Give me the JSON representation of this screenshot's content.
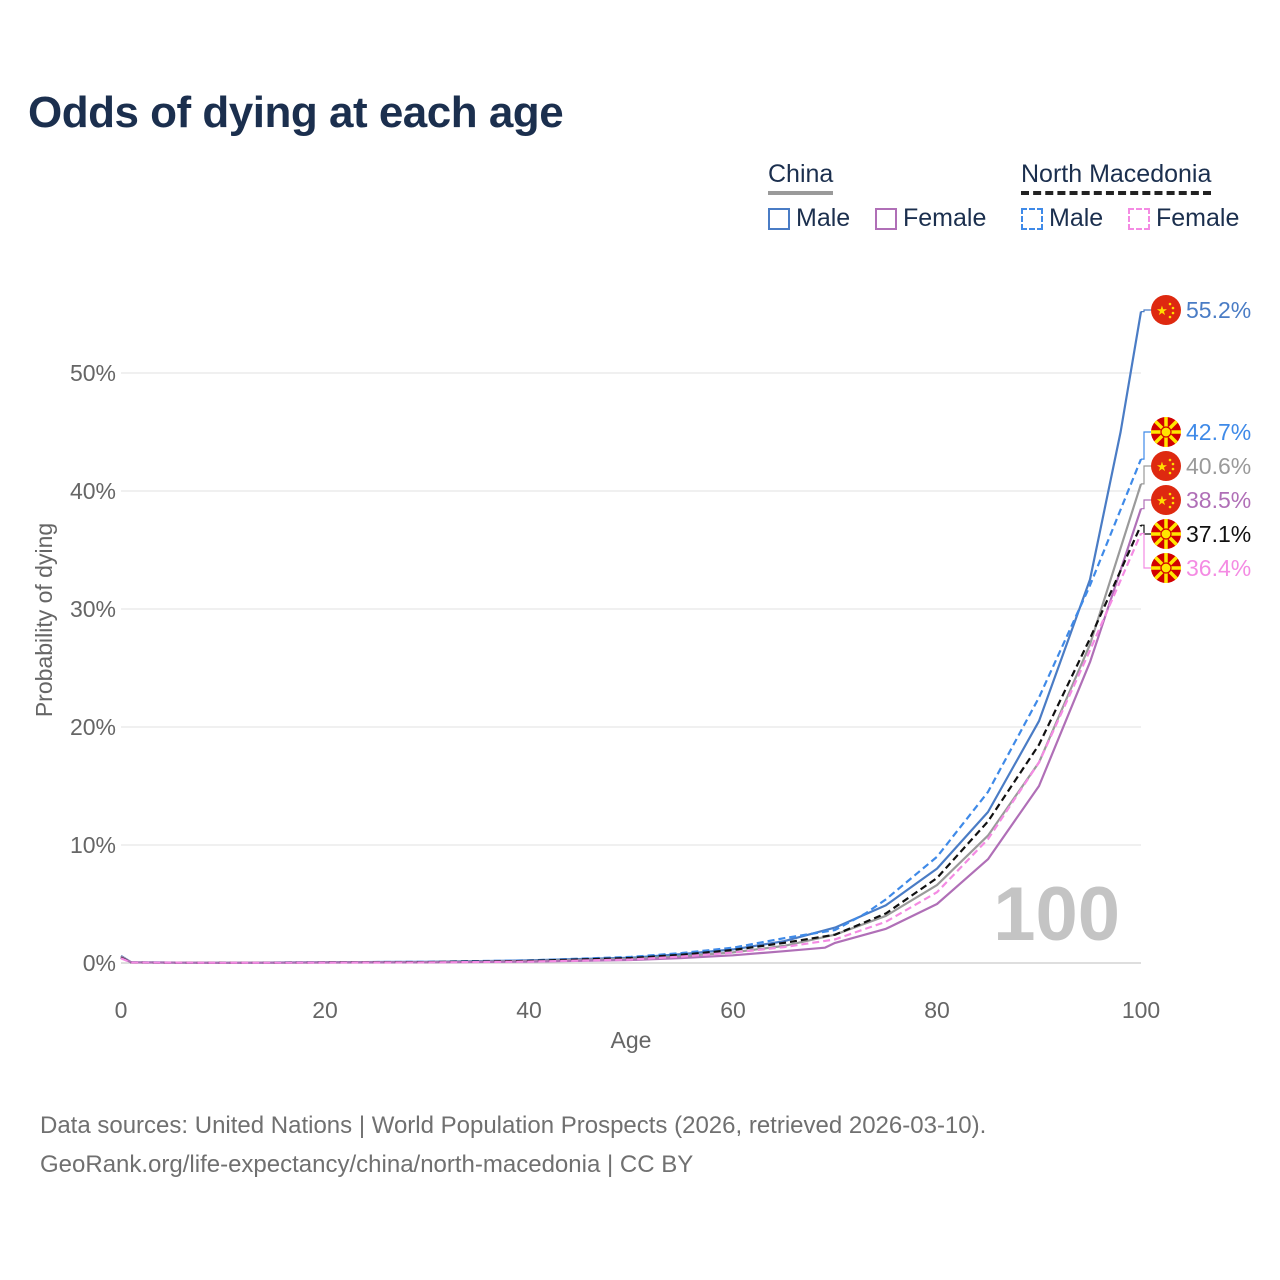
{
  "title": "Odds of dying at each age",
  "legend": {
    "china_label": "China",
    "nm_label": "North Macedonia",
    "male": "Male",
    "female": "Female"
  },
  "colors": {
    "china_male": "#4a7cc5",
    "china_female": "#b06fb7",
    "china_total": "#9a9a9a",
    "nm_male": "#3f8ae8",
    "nm_female": "#f48be3",
    "nm_total": "#111111",
    "title": "#1b2f4e",
    "axis_text": "#666666",
    "watermark": "#c4c4c4"
  },
  "chart_data": {
    "type": "line",
    "title": "Odds of dying at each age",
    "xlabel": "Age",
    "ylabel": "Probability of dying",
    "xlim": [
      0,
      100
    ],
    "ylim": [
      0,
      55
    ],
    "xticks": [
      0,
      20,
      40,
      60,
      80,
      100
    ],
    "xtick_labels": [
      "0",
      "20",
      "40",
      "60",
      "80",
      "100"
    ],
    "yticks": [
      0,
      10,
      20,
      30,
      40,
      50
    ],
    "ytick_labels": [
      "0%",
      "10%",
      "20%",
      "30%",
      "40%",
      "50%"
    ],
    "grid": true,
    "watermark": "100",
    "series": [
      {
        "key": "china_male",
        "name": "China Male",
        "dashed": false,
        "flag": "china",
        "end_label": "55.2%",
        "points": [
          [
            0,
            0.6
          ],
          [
            1,
            0.06
          ],
          [
            10,
            0.02
          ],
          [
            20,
            0.06
          ],
          [
            30,
            0.1
          ],
          [
            40,
            0.22
          ],
          [
            50,
            0.45
          ],
          [
            55,
            0.75
          ],
          [
            60,
            1.15
          ],
          [
            65,
            1.85
          ],
          [
            70,
            3.0
          ],
          [
            75,
            4.9
          ],
          [
            80,
            8.0
          ],
          [
            85,
            12.8
          ],
          [
            90,
            20.5
          ],
          [
            95,
            32.5
          ],
          [
            98,
            45.0
          ],
          [
            100,
            55.2
          ]
        ]
      },
      {
        "key": "nm_male",
        "name": "North Macedonia Male",
        "dashed": true,
        "flag": "nm",
        "end_label": "42.7%",
        "points": [
          [
            0,
            0.5
          ],
          [
            1,
            0.05
          ],
          [
            10,
            0.02
          ],
          [
            20,
            0.06
          ],
          [
            30,
            0.1
          ],
          [
            40,
            0.22
          ],
          [
            50,
            0.52
          ],
          [
            55,
            0.85
          ],
          [
            60,
            1.3
          ],
          [
            65,
            2.1
          ],
          [
            70,
            2.8
          ],
          [
            73,
            4.2
          ],
          [
            75,
            5.4
          ],
          [
            80,
            9.0
          ],
          [
            85,
            14.5
          ],
          [
            90,
            22.5
          ],
          [
            95,
            32.0
          ],
          [
            100,
            42.7
          ]
        ]
      },
      {
        "key": "china_total",
        "name": "China",
        "dashed": false,
        "flag": "china",
        "end_label": "40.6%",
        "points": [
          [
            0,
            0.55
          ],
          [
            1,
            0.05
          ],
          [
            10,
            0.02
          ],
          [
            20,
            0.05
          ],
          [
            30,
            0.08
          ],
          [
            40,
            0.17
          ],
          [
            50,
            0.35
          ],
          [
            55,
            0.58
          ],
          [
            60,
            0.9
          ],
          [
            65,
            1.45
          ],
          [
            70,
            2.4
          ],
          [
            75,
            4.0
          ],
          [
            80,
            6.6
          ],
          [
            85,
            10.8
          ],
          [
            90,
            17.0
          ],
          [
            95,
            27.0
          ],
          [
            100,
            40.6
          ]
        ]
      },
      {
        "key": "china_female",
        "name": "China Female",
        "dashed": false,
        "flag": "china",
        "end_label": "38.5%",
        "points": [
          [
            0,
            0.5
          ],
          [
            1,
            0.05
          ],
          [
            10,
            0.02
          ],
          [
            20,
            0.04
          ],
          [
            30,
            0.06
          ],
          [
            40,
            0.12
          ],
          [
            50,
            0.25
          ],
          [
            55,
            0.42
          ],
          [
            60,
            0.65
          ],
          [
            65,
            1.0
          ],
          [
            69,
            1.3
          ],
          [
            70,
            1.7
          ],
          [
            75,
            2.9
          ],
          [
            80,
            5.0
          ],
          [
            85,
            8.8
          ],
          [
            90,
            15.0
          ],
          [
            95,
            25.5
          ],
          [
            100,
            38.5
          ]
        ]
      },
      {
        "key": "nm_total",
        "name": "North Macedonia",
        "dashed": true,
        "flag": "nm",
        "end_label": "37.1%",
        "points": [
          [
            0,
            0.45
          ],
          [
            1,
            0.04
          ],
          [
            10,
            0.02
          ],
          [
            20,
            0.05
          ],
          [
            30,
            0.08
          ],
          [
            40,
            0.18
          ],
          [
            50,
            0.42
          ],
          [
            55,
            0.7
          ],
          [
            60,
            1.1
          ],
          [
            65,
            1.7
          ],
          [
            70,
            2.4
          ],
          [
            75,
            4.2
          ],
          [
            80,
            7.2
          ],
          [
            85,
            12.0
          ],
          [
            90,
            18.5
          ],
          [
            95,
            27.5
          ],
          [
            100,
            37.1
          ]
        ]
      },
      {
        "key": "nm_female",
        "name": "North Macedonia Female",
        "dashed": true,
        "flag": "nm",
        "end_label": "36.4%",
        "points": [
          [
            0,
            0.4
          ],
          [
            1,
            0.04
          ],
          [
            10,
            0.02
          ],
          [
            20,
            0.03
          ],
          [
            30,
            0.05
          ],
          [
            40,
            0.12
          ],
          [
            50,
            0.3
          ],
          [
            55,
            0.55
          ],
          [
            60,
            0.88
          ],
          [
            65,
            1.35
          ],
          [
            70,
            2.0
          ],
          [
            75,
            3.5
          ],
          [
            80,
            6.0
          ],
          [
            85,
            10.5
          ],
          [
            90,
            17.0
          ],
          [
            95,
            26.5
          ],
          [
            100,
            36.4
          ]
        ]
      }
    ]
  },
  "footer": {
    "line1": "Data sources: United Nations | World Population Prospects (2026, retrieved 2026-03-10).",
    "line2": "GeoRank.org/life-expectancy/china/north-macedonia | CC BY"
  }
}
